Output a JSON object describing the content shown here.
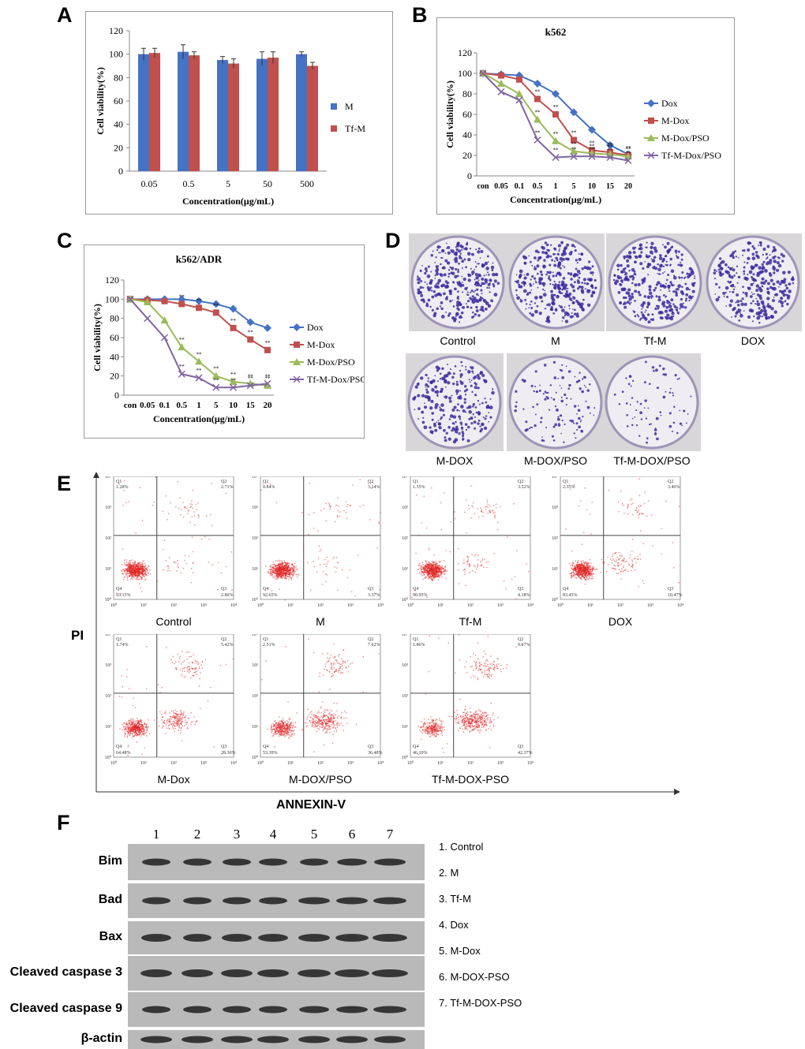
{
  "panel_labels": {
    "A": "A",
    "B": "B",
    "C": "C",
    "D": "D",
    "E": "E",
    "F": "F"
  },
  "chart_data": [
    {
      "id": "A",
      "type": "bar",
      "title": "",
      "xlabel": "Concentration(μg/mL)",
      "ylabel": "Cell viability(%)",
      "categories": [
        "0.05",
        "0.5",
        "5",
        "50",
        "500"
      ],
      "ylim": [
        0,
        120
      ],
      "yticks": [
        0,
        20,
        40,
        60,
        80,
        100,
        120
      ],
      "series": [
        {
          "name": "M",
          "color": "#4472c4",
          "values": [
            100,
            102,
            95,
            96,
            100
          ],
          "errors": [
            5,
            6,
            3,
            6,
            2
          ]
        },
        {
          "name": "Tf-M",
          "color": "#c0504d",
          "values": [
            101,
            99,
            92,
            97,
            90
          ],
          "errors": [
            4,
            3,
            4,
            5,
            3
          ]
        }
      ]
    },
    {
      "id": "B",
      "type": "line",
      "title": "k562",
      "xlabel": "Concentration(μg/mL)",
      "ylabel": "Cell viability(%)",
      "categories": [
        "con",
        "0.05",
        "0.1",
        "0.5",
        "1",
        "5",
        "10",
        "15",
        "20"
      ],
      "ylim": [
        0,
        120
      ],
      "yticks": [
        0,
        20,
        40,
        60,
        80,
        100,
        120
      ],
      "significance_marker": "**",
      "series": [
        {
          "name": "Dox",
          "color": "#4472c4",
          "marker": "diamond",
          "values": [
            100,
            99,
            98,
            90,
            80,
            62,
            45,
            30,
            21
          ]
        },
        {
          "name": "M-Dox",
          "color": "#c0504d",
          "marker": "square",
          "values": [
            100,
            98,
            94,
            75,
            60,
            35,
            25,
            23,
            20
          ]
        },
        {
          "name": "M-Dox/PSO",
          "color": "#9bbb59",
          "marker": "triangle",
          "values": [
            100,
            90,
            80,
            55,
            34,
            24,
            22,
            21,
            19
          ]
        },
        {
          "name": "Tf-M-Dox/PSO",
          "color": "#8064a2",
          "marker": "x",
          "values": [
            100,
            82,
            74,
            35,
            18,
            19,
            19,
            18,
            15
          ]
        }
      ]
    },
    {
      "id": "C",
      "type": "line",
      "title": "k562/ADR",
      "xlabel": "Concentration(μg/mL)",
      "ylabel": "Cell viability(%)",
      "categories": [
        "con",
        "0.05",
        "0.1",
        "0.5",
        "1",
        "5",
        "10",
        "15",
        "20"
      ],
      "ylim": [
        0,
        120
      ],
      "yticks": [
        0,
        20,
        40,
        60,
        80,
        100,
        120
      ],
      "significance_marker": "**",
      "series": [
        {
          "name": "Dox",
          "color": "#4472c4",
          "marker": "diamond",
          "values": [
            100,
            100,
            100,
            100,
            98,
            95,
            90,
            76,
            70
          ]
        },
        {
          "name": "M-Dox",
          "color": "#c0504d",
          "marker": "square",
          "values": [
            100,
            99,
            98,
            95,
            91,
            86,
            70,
            58,
            47
          ]
        },
        {
          "name": "M-Dox/PSO",
          "color": "#9bbb59",
          "marker": "triangle",
          "values": [
            100,
            97,
            78,
            50,
            35,
            20,
            14,
            12,
            10
          ]
        },
        {
          "name": "Tf-M-Dox/PSO",
          "color": "#8064a2",
          "marker": "x",
          "values": [
            100,
            80,
            60,
            22,
            18,
            8,
            8,
            10,
            12
          ]
        }
      ]
    }
  ],
  "colony": {
    "dishes": [
      {
        "label": "Control",
        "density": 1.0
      },
      {
        "label": "M",
        "density": 1.0
      },
      {
        "label": "Tf-M",
        "density": 1.0
      },
      {
        "label": "DOX",
        "density": 0.9
      },
      {
        "label": "M-DOX",
        "density": 0.75
      },
      {
        "label": "M-DOX/PSO",
        "density": 0.35
      },
      {
        "label": "Tf-M-DOX/PSO",
        "density": 0.22
      }
    ]
  },
  "flow": {
    "y_axis_label": "PI",
    "x_axis_label": "ANNEXIN-V",
    "quadrant_names": [
      "Q1",
      "Q2",
      "Q3",
      "Q4"
    ],
    "tick_labels": [
      "10⁰",
      "10¹",
      "10²",
      "10³",
      "10⁴"
    ],
    "plots": [
      {
        "label": "Control",
        "q1": "1.28%",
        "q2": "2.71%",
        "q3": "2.86%",
        "q4": "93.15%"
      },
      {
        "label": "M",
        "q1": "0.84%",
        "q2": "3.14%",
        "q3": "3.37%",
        "q4": "92.65%"
      },
      {
        "label": "Tf-M",
        "q1": "1.35%",
        "q2": "3.52%",
        "q3": "4.18%",
        "q4": "90.95%"
      },
      {
        "label": "DOX",
        "q1": "2.35%",
        "q2": "3.46%",
        "q3": "10.47%",
        "q4": "83.45%"
      },
      {
        "label": "M-Dox",
        "q1": "1.74%",
        "q2": "5.42%",
        "q3": "28.36%",
        "q4": "64.48%"
      },
      {
        "label": "M-DOX/PSO",
        "q1": "2.51%",
        "q2": "7.62%",
        "q3": "36.48%",
        "q4": "53.39%"
      },
      {
        "label": "Tf-M-DOX-PSO",
        "q1": "1.86%",
        "q2": "9.67%",
        "q3": "42.37%",
        "q4": "46.10%"
      }
    ]
  },
  "western": {
    "lanes": [
      "1",
      "2",
      "3",
      "4",
      "5",
      "6",
      "7"
    ],
    "rows": [
      "Bim",
      "Bad",
      "Bax",
      "Cleaved caspase 3",
      "Cleaved caspase 9",
      "β-actin"
    ],
    "legend": [
      "1. Control",
      "2. M",
      "3. Tf-M",
      "4. Dox",
      "5. M-Dox",
      "6. M-DOX-PSO",
      "7. Tf-M-DOX-PSO"
    ]
  }
}
